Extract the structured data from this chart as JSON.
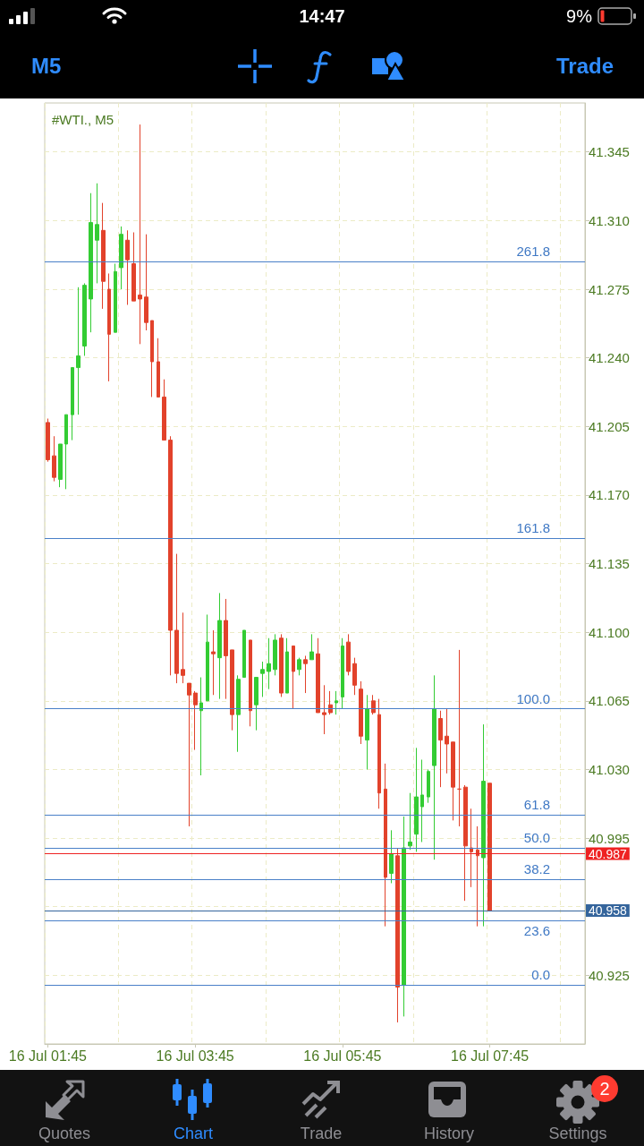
{
  "chart_data": {
    "type": "candlestick",
    "title": "#WTI., M5",
    "categories": [
      "16 Jul 01:45",
      null,
      null,
      null,
      null,
      null,
      null,
      null,
      null,
      null,
      null,
      null,
      null,
      null,
      null,
      null,
      null,
      null,
      null,
      null,
      null,
      null,
      null,
      null,
      "16 Jul 03:45",
      null,
      null,
      null,
      null,
      null,
      null,
      null,
      null,
      null,
      null,
      null,
      null,
      null,
      null,
      null,
      null,
      null,
      null,
      null,
      null,
      null,
      null,
      null,
      "16 Jul 05:45",
      null,
      null,
      null,
      null,
      null,
      null,
      null,
      null,
      null,
      null,
      null,
      null,
      null,
      null,
      null,
      null,
      null,
      null,
      null,
      null,
      null,
      null,
      null,
      "16 Jul 07:45",
      null,
      null,
      null,
      null,
      null,
      null,
      null,
      null,
      null,
      null,
      null,
      null,
      null,
      null,
      null
    ],
    "ohlc": [
      [
        41.207,
        41.209,
        41.187,
        41.188
      ],
      [
        41.19,
        41.2,
        41.177,
        41.179
      ],
      [
        41.178,
        41.196,
        41.174,
        41.196
      ],
      [
        41.196,
        41.211,
        41.173,
        41.211
      ],
      [
        41.211,
        41.235,
        41.198,
        41.235
      ],
      [
        41.235,
        41.276,
        41.211,
        41.241
      ],
      [
        41.246,
        41.278,
        41.241,
        41.277
      ],
      [
        41.27,
        41.324,
        41.253,
        41.309
      ],
      [
        41.3,
        41.329,
        41.278,
        41.308
      ],
      [
        41.305,
        41.319,
        41.265,
        41.279
      ],
      [
        41.275,
        41.283,
        41.228,
        41.252
      ],
      [
        41.253,
        41.288,
        41.253,
        41.284
      ],
      [
        41.286,
        41.307,
        41.275,
        41.303
      ],
      [
        41.3,
        41.305,
        41.267,
        41.29
      ],
      [
        41.288,
        41.304,
        41.269,
        41.269
      ],
      [
        41.272,
        41.359,
        41.247,
        41.27
      ],
      [
        41.271,
        41.303,
        41.254,
        41.258
      ],
      [
        41.259,
        41.259,
        41.22,
        41.238
      ],
      [
        41.238,
        41.25,
        41.22,
        41.22
      ],
      [
        41.22,
        41.229,
        41.198,
        41.198
      ],
      [
        41.198,
        41.2,
        41.078,
        41.101
      ],
      [
        41.101,
        41.14,
        41.074,
        41.079
      ],
      [
        41.081,
        41.11,
        41.074,
        41.078
      ],
      [
        41.074,
        41.074,
        41.001,
        41.068
      ],
      [
        41.069,
        41.07,
        41.04,
        41.063
      ],
      [
        41.06,
        41.077,
        41.027,
        41.064
      ],
      [
        41.065,
        41.109,
        41.065,
        41.095
      ],
      [
        41.09,
        41.101,
        41.068,
        41.089
      ],
      [
        41.087,
        41.12,
        41.066,
        41.106
      ],
      [
        41.106,
        41.117,
        41.066,
        41.088
      ],
      [
        41.091,
        41.091,
        41.05,
        41.058
      ],
      [
        41.058,
        41.078,
        41.039,
        41.076
      ],
      [
        41.077,
        41.101,
        41.077,
        41.101
      ],
      [
        41.096,
        41.096,
        41.052,
        41.06
      ],
      [
        41.063,
        41.077,
        41.05,
        41.077
      ],
      [
        41.079,
        41.085,
        41.067,
        41.081
      ],
      [
        41.08,
        41.097,
        41.071,
        41.084
      ],
      [
        41.081,
        41.099,
        41.078,
        41.096
      ],
      [
        41.097,
        41.099,
        41.067,
        41.069
      ],
      [
        41.069,
        41.097,
        41.069,
        41.09
      ],
      [
        41.093,
        41.093,
        41.061,
        41.08
      ],
      [
        41.081,
        41.087,
        41.078,
        41.086
      ],
      [
        41.086,
        41.088,
        41.069,
        41.084
      ],
      [
        41.086,
        41.099,
        41.086,
        41.09
      ],
      [
        41.089,
        41.097,
        41.059,
        41.059
      ],
      [
        41.059,
        41.073,
        41.048,
        41.058
      ],
      [
        41.063,
        41.07,
        41.058,
        41.059
      ],
      [
        41.064,
        41.07,
        41.058,
        41.065
      ],
      [
        41.067,
        41.097,
        41.061,
        41.093
      ],
      [
        41.095,
        41.099,
        41.078,
        41.08
      ],
      [
        41.084,
        41.087,
        41.068,
        41.073
      ],
      [
        41.071,
        41.075,
        41.043,
        41.047
      ],
      [
        41.045,
        41.068,
        41.03,
        41.061
      ],
      [
        41.065,
        41.068,
        41.058,
        41.059
      ],
      [
        41.058,
        41.066,
        41.01,
        41.018
      ],
      [
        41.02,
        41.033,
        40.95,
        40.975
      ],
      [
        40.977,
        40.999,
        40.972,
        40.987
      ],
      [
        40.986,
        40.99,
        40.901,
        40.919
      ],
      [
        40.92,
        41.006,
        40.904,
        40.99
      ],
      [
        40.991,
        41.018,
        40.989,
        40.993
      ],
      [
        40.997,
        41.041,
        40.988,
        41.016
      ],
      [
        41.011,
        41.035,
        40.993,
        41.017
      ],
      [
        41.016,
        41.03,
        41.013,
        41.029
      ],
      [
        41.032,
        41.078,
        40.984,
        41.061
      ],
      [
        41.056,
        41.06,
        41.021,
        41.045
      ],
      [
        41.047,
        41.061,
        41.028,
        41.043
      ],
      [
        41.044,
        41.044,
        41.004,
        41.021
      ],
      [
        41.02,
        41.091,
        41.001,
        41.02
      ],
      [
        41.021,
        41.022,
        40.963,
        40.991
      ],
      [
        40.99,
        41.01,
        40.97,
        40.988
      ],
      [
        40.989,
        41.001,
        40.95,
        40.986
      ],
      [
        40.985,
        41.053,
        40.95,
        41.024
      ],
      [
        41.023,
        41.023,
        40.958,
        40.958
      ],
      null,
      null,
      null,
      null,
      null,
      null,
      null,
      null,
      null,
      null,
      null,
      null,
      null,
      null,
      null
    ],
    "colors": [
      "#e2422b",
      "#e2422b",
      "#33cc33",
      "#33cc33",
      "#33cc33",
      "#33cc33",
      "#33cc33",
      "#33cc33",
      "#33cc33",
      "#e2422b",
      "#e2422b",
      "#33cc33",
      "#33cc33",
      "#e2422b",
      "#e2422b",
      "#e2422b",
      "#e2422b",
      "#e2422b",
      "#e2422b",
      "#e2422b",
      "#e2422b",
      "#e2422b",
      "#e2422b",
      "#e2422b",
      "#e2422b",
      "#33cc33",
      "#33cc33",
      "#e2422b",
      "#33cc33",
      "#e2422b",
      "#e2422b",
      "#33cc33",
      "#33cc33",
      "#e2422b",
      "#33cc33",
      "#33cc33",
      "#33cc33",
      "#33cc33",
      "#e2422b",
      "#33cc33",
      "#e2422b",
      "#33cc33",
      "#e2422b",
      "#33cc33",
      "#e2422b",
      "#e2422b",
      "#e2422b",
      "#33cc33",
      "#33cc33",
      "#e2422b",
      "#e2422b",
      "#e2422b",
      "#33cc33",
      "#e2422b",
      "#e2422b",
      "#e2422b",
      "#33cc33",
      "#e2422b",
      "#33cc33",
      "#33cc33",
      "#33cc33",
      "#33cc33",
      "#33cc33",
      "#33cc33",
      "#e2422b",
      "#e2422b",
      "#e2422b",
      "#e2422b",
      "#e2422b",
      "#e2422b",
      "#e2422b",
      "#33cc33",
      "#e2422b",
      null,
      null,
      null,
      null,
      null,
      null,
      null,
      null,
      null,
      null,
      null,
      null,
      null,
      null,
      null
    ],
    "ylim": [
      40.89,
      41.37
    ],
    "yticks": [
      40.925,
      {
        "value": 40.96,
        "label": null
      },
      40.995,
      {
        "value": 41.03,
        "label": "41.030"
      },
      41.065,
      {
        "value": 41.1,
        "label": "41.100"
      },
      41.135,
      {
        "value": 41.17,
        "label": "41.170"
      },
      41.205,
      {
        "value": 41.24,
        "label": "41.240"
      },
      41.275,
      {
        "value": 41.31,
        "label": "41.310"
      },
      41.345
    ],
    "grid": true,
    "ref_lines": [
      {
        "axis": "y",
        "value": 41.289,
        "color": "#4a80c8"
      },
      {
        "axis": "y",
        "value": 41.148,
        "color": "#4a80c8"
      },
      {
        "axis": "y",
        "value": 41.061,
        "color": "#4a80c8"
      },
      {
        "axis": "y",
        "value": 41.007,
        "color": "#4a80c8"
      },
      {
        "axis": "y",
        "value": 40.99,
        "color": "#4a80c8"
      },
      {
        "axis": "y",
        "value": 40.974,
        "color": "#4a80c8"
      },
      {
        "axis": "y",
        "value": 40.953,
        "color": "#4a80c8"
      },
      {
        "axis": "y",
        "value": 40.92,
        "color": "#4a80c8"
      },
      {
        "axis": "y",
        "value": 40.987,
        "label": "40.987",
        "color": "#ee2222"
      },
      {
        "axis": "y",
        "value": 40.958,
        "label": "40.958",
        "color": "#35659c"
      }
    ],
    "annotations": [
      "14:47",
      "9%",
      "M5",
      "Trade",
      "Quotes",
      "Chart",
      "Trade",
      "History",
      "Settings",
      "2",
      {
        "text": "261.8",
        "y": 41.289
      },
      {
        "text": "161.8",
        "y": 41.148
      },
      {
        "text": "100.0",
        "y": 41.061
      },
      {
        "text": "61.8",
        "y": 41.007
      },
      {
        "text": "50.0",
        "y": 40.99
      },
      {
        "text": "38.2",
        "y": 40.974
      },
      {
        "text": "23.6",
        "y": 40.953
      },
      {
        "text": "0.0",
        "y": 40.92
      }
    ]
  }
}
